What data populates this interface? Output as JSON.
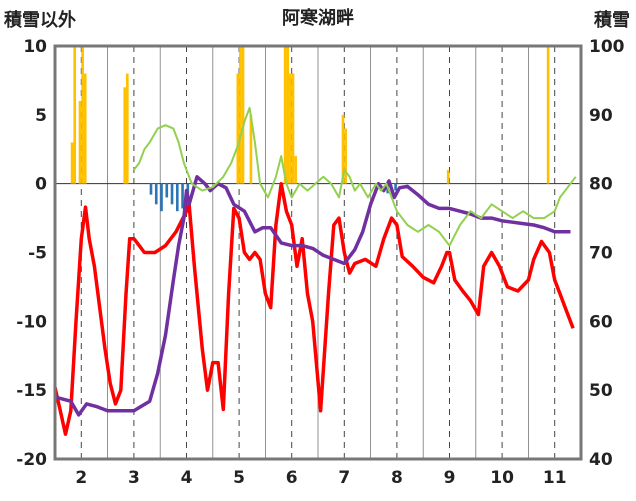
{
  "chart_data": {
    "type": "line",
    "title": "阿寒湖畔",
    "ylabel_left": "積雪以外",
    "ylabel_right": "積雪",
    "x_ticks": [
      "2",
      "3",
      "4",
      "5",
      "6",
      "7",
      "8",
      "9",
      "10",
      "11"
    ],
    "xlim": [
      1.5,
      11.5
    ],
    "ylim_left": [
      -20,
      10
    ],
    "ylim_right": [
      40,
      100
    ],
    "y_ticks_left": [
      "10",
      "5",
      "0",
      "-5",
      "-10",
      "-15",
      "-20"
    ],
    "y_ticks_right": [
      "100",
      "90",
      "80",
      "70",
      "60",
      "50",
      "40"
    ],
    "grid": "dashed vertical at each x tick",
    "colors": {
      "red": "#ff0000",
      "purple": "#7030a0",
      "green": "#92d050",
      "orange_bars": "#ffc000",
      "blue_bars": "#2e75b6"
    },
    "series": [
      {
        "axis": "left",
        "color": "#ff0000",
        "kind": "line",
        "points": [
          [
            1.5,
            -14.8
          ],
          [
            1.6,
            -16.5
          ],
          [
            1.7,
            -18.2
          ],
          [
            1.8,
            -16.5
          ],
          [
            1.9,
            -10
          ],
          [
            2.0,
            -4
          ],
          [
            2.08,
            -1.7
          ],
          [
            2.15,
            -4
          ],
          [
            2.25,
            -6
          ],
          [
            2.35,
            -9
          ],
          [
            2.45,
            -12
          ],
          [
            2.55,
            -14.5
          ],
          [
            2.65,
            -16
          ],
          [
            2.75,
            -15
          ],
          [
            2.85,
            -8
          ],
          [
            2.92,
            -4
          ],
          [
            3.0,
            -4
          ],
          [
            3.1,
            -4.5
          ],
          [
            3.2,
            -5
          ],
          [
            3.4,
            -5
          ],
          [
            3.6,
            -4.5
          ],
          [
            3.8,
            -3.5
          ],
          [
            4.0,
            -2.0
          ],
          [
            4.05,
            -1.5
          ],
          [
            4.15,
            -6
          ],
          [
            4.3,
            -12
          ],
          [
            4.4,
            -15
          ],
          [
            4.5,
            -13
          ],
          [
            4.6,
            -13
          ],
          [
            4.7,
            -16.4
          ],
          [
            4.8,
            -8
          ],
          [
            4.9,
            -1.8
          ],
          [
            5.0,
            -2.5
          ],
          [
            5.1,
            -5
          ],
          [
            5.2,
            -5.5
          ],
          [
            5.3,
            -5
          ],
          [
            5.4,
            -5.5
          ],
          [
            5.5,
            -8
          ],
          [
            5.6,
            -9
          ],
          [
            5.7,
            -3
          ],
          [
            5.8,
            0
          ],
          [
            5.9,
            -2
          ],
          [
            6.0,
            -3
          ],
          [
            6.1,
            -6
          ],
          [
            6.2,
            -4
          ],
          [
            6.3,
            -8
          ],
          [
            6.4,
            -10
          ],
          [
            6.55,
            -16.5
          ],
          [
            6.7,
            -8
          ],
          [
            6.8,
            -3
          ],
          [
            6.9,
            -2.5
          ],
          [
            7.0,
            -5
          ],
          [
            7.1,
            -6.5
          ],
          [
            7.2,
            -5.8
          ],
          [
            7.4,
            -5.5
          ],
          [
            7.6,
            -6
          ],
          [
            7.75,
            -4
          ],
          [
            7.9,
            -2.5
          ],
          [
            8.0,
            -3
          ],
          [
            8.1,
            -5.3
          ],
          [
            8.3,
            -6
          ],
          [
            8.5,
            -6.8
          ],
          [
            8.7,
            -7.2
          ],
          [
            8.85,
            -6
          ],
          [
            8.95,
            -5
          ],
          [
            9.0,
            -5
          ],
          [
            9.1,
            -7
          ],
          [
            9.25,
            -7.8
          ],
          [
            9.4,
            -8.5
          ],
          [
            9.55,
            -9.5
          ],
          [
            9.65,
            -6
          ],
          [
            9.8,
            -5
          ],
          [
            9.95,
            -6
          ],
          [
            10.1,
            -7.5
          ],
          [
            10.3,
            -7.8
          ],
          [
            10.5,
            -7
          ],
          [
            10.6,
            -5.5
          ],
          [
            10.75,
            -4.2
          ],
          [
            10.9,
            -5
          ],
          [
            11.0,
            -7
          ],
          [
            11.1,
            -8
          ],
          [
            11.2,
            -9
          ],
          [
            11.35,
            -10.5
          ]
        ]
      },
      {
        "axis": "left",
        "color": "#7030a0",
        "kind": "line",
        "points": [
          [
            1.5,
            -15.5
          ],
          [
            1.8,
            -15.8
          ],
          [
            1.95,
            -16.8
          ],
          [
            2.1,
            -16
          ],
          [
            2.3,
            -16.2
          ],
          [
            2.5,
            -16.5
          ],
          [
            2.8,
            -16.5
          ],
          [
            3.0,
            -16.5
          ],
          [
            3.3,
            -15.8
          ],
          [
            3.45,
            -13.8
          ],
          [
            3.6,
            -11
          ],
          [
            3.75,
            -7
          ],
          [
            3.85,
            -4.5
          ],
          [
            3.95,
            -2.5
          ],
          [
            4.0,
            -0.5
          ],
          [
            4.05,
            -1.5
          ],
          [
            4.2,
            0.5
          ],
          [
            4.35,
            0
          ],
          [
            4.45,
            -0.5
          ],
          [
            4.6,
            0
          ],
          [
            4.75,
            -0.3
          ],
          [
            4.9,
            -1.5
          ],
          [
            5.1,
            -2
          ],
          [
            5.3,
            -3.5
          ],
          [
            5.45,
            -3.2
          ],
          [
            5.6,
            -3.2
          ],
          [
            5.8,
            -4.3
          ],
          [
            6.0,
            -4.5
          ],
          [
            6.2,
            -4.5
          ],
          [
            6.4,
            -4.7
          ],
          [
            6.6,
            -5.2
          ],
          [
            6.8,
            -5.5
          ],
          [
            7.0,
            -5.8
          ],
          [
            7.2,
            -4.8
          ],
          [
            7.35,
            -3.5
          ],
          [
            7.5,
            -1.5
          ],
          [
            7.65,
            0
          ],
          [
            7.75,
            -0.5
          ],
          [
            7.85,
            0.2
          ],
          [
            7.95,
            -1
          ],
          [
            8.05,
            -0.3
          ],
          [
            8.2,
            -0.2
          ],
          [
            8.4,
            -0.8
          ],
          [
            8.6,
            -1.5
          ],
          [
            8.8,
            -1.8
          ],
          [
            9.0,
            -1.8
          ],
          [
            9.2,
            -2.0
          ],
          [
            9.4,
            -2.2
          ],
          [
            9.6,
            -2.5
          ],
          [
            9.8,
            -2.5
          ],
          [
            10.0,
            -2.7
          ],
          [
            10.2,
            -2.8
          ],
          [
            10.4,
            -2.9
          ],
          [
            10.6,
            -3.0
          ],
          [
            10.8,
            -3.2
          ],
          [
            11.0,
            -3.5
          ],
          [
            11.3,
            -3.5
          ]
        ]
      },
      {
        "axis": "right",
        "color": "#92d050",
        "kind": "line",
        "points": [
          [
            3.0,
            82
          ],
          [
            3.1,
            83
          ],
          [
            3.2,
            85
          ],
          [
            3.3,
            86
          ],
          [
            3.45,
            88
          ],
          [
            3.6,
            88.5
          ],
          [
            3.75,
            88
          ],
          [
            3.85,
            86
          ],
          [
            3.95,
            83
          ],
          [
            4.1,
            80
          ],
          [
            4.3,
            79
          ],
          [
            4.5,
            79.5
          ],
          [
            4.7,
            81
          ],
          [
            4.85,
            83
          ],
          [
            5.0,
            86
          ],
          [
            5.1,
            89
          ],
          [
            5.2,
            91
          ],
          [
            5.3,
            86
          ],
          [
            5.4,
            80
          ],
          [
            5.55,
            78
          ],
          [
            5.7,
            81
          ],
          [
            5.8,
            84
          ],
          [
            5.9,
            80
          ],
          [
            6.0,
            78
          ],
          [
            6.15,
            80
          ],
          [
            6.3,
            79
          ],
          [
            6.45,
            80
          ],
          [
            6.6,
            81
          ],
          [
            6.75,
            80
          ],
          [
            6.9,
            78
          ],
          [
            7.0,
            82
          ],
          [
            7.1,
            81
          ],
          [
            7.2,
            79
          ],
          [
            7.3,
            80
          ],
          [
            7.45,
            78
          ],
          [
            7.6,
            80
          ],
          [
            7.7,
            79
          ],
          [
            7.8,
            80
          ],
          [
            8.0,
            76
          ],
          [
            8.2,
            74
          ],
          [
            8.4,
            73
          ],
          [
            8.6,
            74
          ],
          [
            8.8,
            73
          ],
          [
            9.0,
            71
          ],
          [
            9.2,
            74
          ],
          [
            9.4,
            76
          ],
          [
            9.6,
            75
          ],
          [
            9.8,
            77
          ],
          [
            10.0,
            76
          ],
          [
            10.2,
            75
          ],
          [
            10.4,
            76
          ],
          [
            10.6,
            75
          ],
          [
            10.8,
            75
          ],
          [
            11.0,
            76
          ],
          [
            11.1,
            78
          ],
          [
            11.3,
            80
          ],
          [
            11.4,
            81
          ]
        ]
      }
    ],
    "bars": [
      {
        "axis": "left",
        "color": "#ffc000",
        "ranges": [
          [
            1.8,
            1.85,
            3
          ],
          [
            1.85,
            1.9,
            10
          ],
          [
            1.95,
            2.0,
            6
          ],
          [
            2.0,
            2.05,
            10
          ],
          [
            2.05,
            2.1,
            8
          ],
          [
            2.8,
            2.85,
            7
          ],
          [
            2.85,
            2.9,
            8
          ],
          [
            4.95,
            5.0,
            8
          ],
          [
            5.0,
            5.05,
            10
          ],
          [
            5.05,
            5.1,
            10
          ],
          [
            5.2,
            5.25,
            5
          ],
          [
            5.85,
            5.9,
            10
          ],
          [
            5.9,
            5.95,
            10
          ],
          [
            5.95,
            6.0,
            8
          ],
          [
            6.0,
            6.05,
            8
          ],
          [
            6.05,
            6.1,
            2
          ],
          [
            6.95,
            7.0,
            5
          ],
          [
            7.0,
            7.05,
            4
          ],
          [
            8.95,
            9.0,
            1
          ],
          [
            10.85,
            10.9,
            10
          ]
        ]
      },
      {
        "axis": "left",
        "color": "#2e75b6",
        "ranges": [
          [
            3.3,
            3.35,
            -0.8
          ],
          [
            3.4,
            3.45,
            -1.5
          ],
          [
            3.5,
            3.55,
            -2
          ],
          [
            3.6,
            3.65,
            -1
          ],
          [
            3.7,
            3.75,
            -1.5
          ],
          [
            3.8,
            3.85,
            -2
          ],
          [
            3.9,
            3.95,
            -1.8
          ],
          [
            4.0,
            4.05,
            -1
          ],
          [
            7.8,
            7.85,
            -0.7
          ],
          [
            7.95,
            8.0,
            -0.5
          ]
        ]
      }
    ]
  }
}
